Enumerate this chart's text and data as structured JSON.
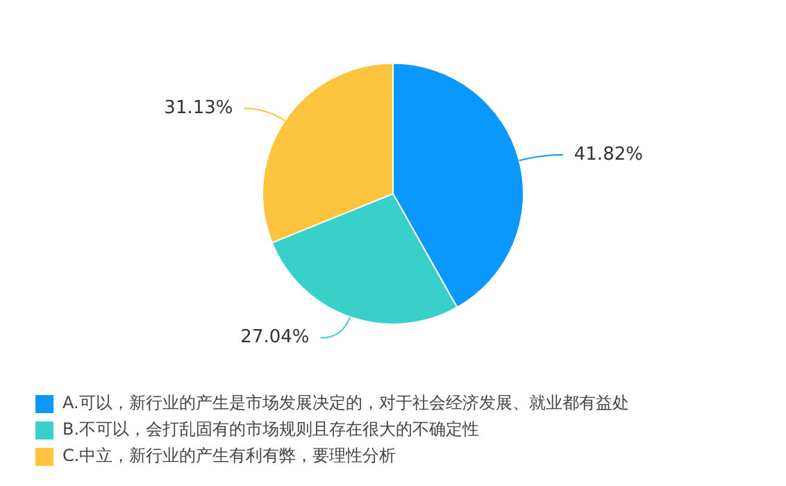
{
  "chart_data": {
    "type": "pie",
    "categories": [
      "A.可以，新行业的产生是市场发展决定的，对于社会经济发展、就业都有益处",
      "B.不可以，会打乱固有的市场规则且存在很大的不确定性",
      "C.中立，新行业的产生有利有弊，要理性分析"
    ],
    "values": [
      41.82,
      27.04,
      31.13
    ],
    "colors": [
      "#0a98ff",
      "#38d0c9",
      "#ffc43e"
    ],
    "value_labels": [
      "41.82%",
      "27.04%",
      "31.13%"
    ],
    "legend": "bottom left"
  }
}
